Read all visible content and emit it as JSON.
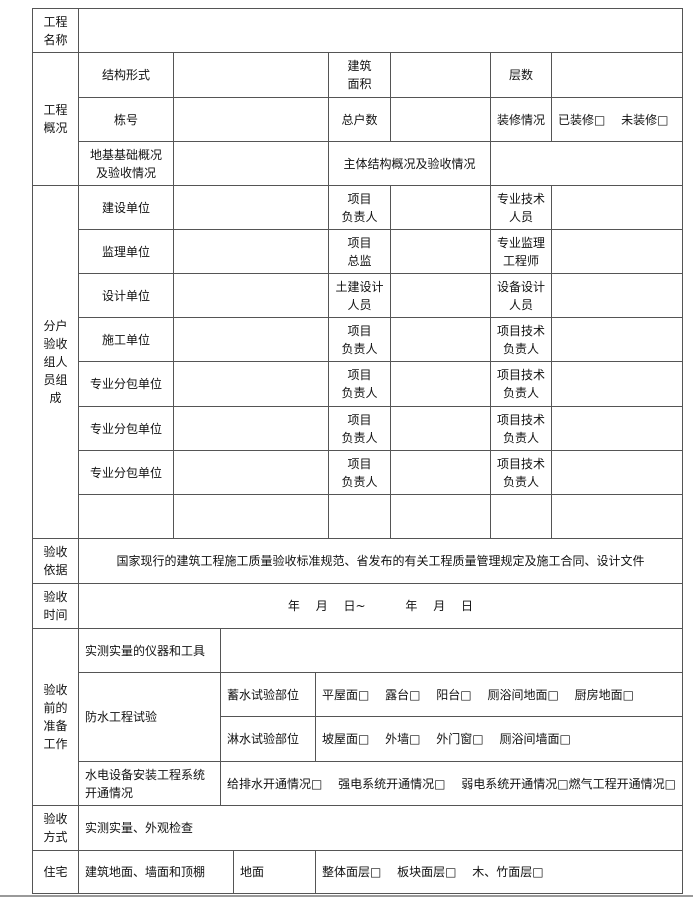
{
  "project_name": {
    "label": "工程\n名称",
    "value": ""
  },
  "overview": {
    "label": "工程\n概况",
    "structure_form": "结构形式",
    "building_area": "建筑\n面积",
    "floors": "层数",
    "building_no": "栋号",
    "total_households": "总户数",
    "decoration_status": "装修情况",
    "decoration_options": "已装修□　 未装修□",
    "foundation": "地基基础概况\n及验收情况",
    "main_structure": "主体结构概况及验收情况"
  },
  "team": {
    "label": "分户\n验收\n组人\n员组\n成",
    "rows": [
      {
        "unit": "建设单位",
        "lead": "项目\n负责人",
        "tech": "专业技术\n人员"
      },
      {
        "unit": "监理单位",
        "lead": "项目\n总监",
        "tech": "专业监理\n工程师"
      },
      {
        "unit": "设计单位",
        "lead": "土建设计\n人员",
        "tech": "设备设计\n人员"
      },
      {
        "unit": "施工单位",
        "lead": "项目\n负责人",
        "tech": "项目技术\n负责人"
      },
      {
        "unit": "专业分包单位",
        "lead": "项目\n负责人",
        "tech": "项目技术\n负责人"
      },
      {
        "unit": "专业分包单位",
        "lead": "项目\n负责人",
        "tech": "项目技术\n负责人"
      },
      {
        "unit": "专业分包单位",
        "lead": "项目\n负责人",
        "tech": "项目技术\n负责人"
      }
    ]
  },
  "basis": {
    "label": "验收\n依据",
    "value": "国家现行的建筑工程施工质量验收标准规范、省发布的有关工程质量管理规定及施工合同、设计文件"
  },
  "time": {
    "label": "验收\n时间",
    "value": "年　 月　 日~　　　 年　 月　 日"
  },
  "prep": {
    "label": "验收\n前的\n准备\n工作",
    "instruments": "实测实量的仪器和工具",
    "waterproof": "防水工程试验",
    "storage_test": "蓄水试验部位",
    "storage_options": "平屋面□　 露台□　 阳台□　 厕浴间地面□　 厨房地面□",
    "spray_test": "淋水试验部位",
    "spray_options": "坡屋面□　 外墙□　 外门窗□　 厕浴间墙面□",
    "mep": "水电设备安装工程系统\n开通情况",
    "mep_options": "给排水开通情况□　 强电系统开通情况□　 弱电系统开通情况□燃气工程开通情况□"
  },
  "method": {
    "label": "验收\n方式",
    "value": "实测实量、外观检查"
  },
  "residence": {
    "label": "住宅",
    "item": "建筑地面、墙面和顶棚",
    "sub": "地面",
    "options": "整体面层□　 板块面层□　 木、竹面层□"
  }
}
